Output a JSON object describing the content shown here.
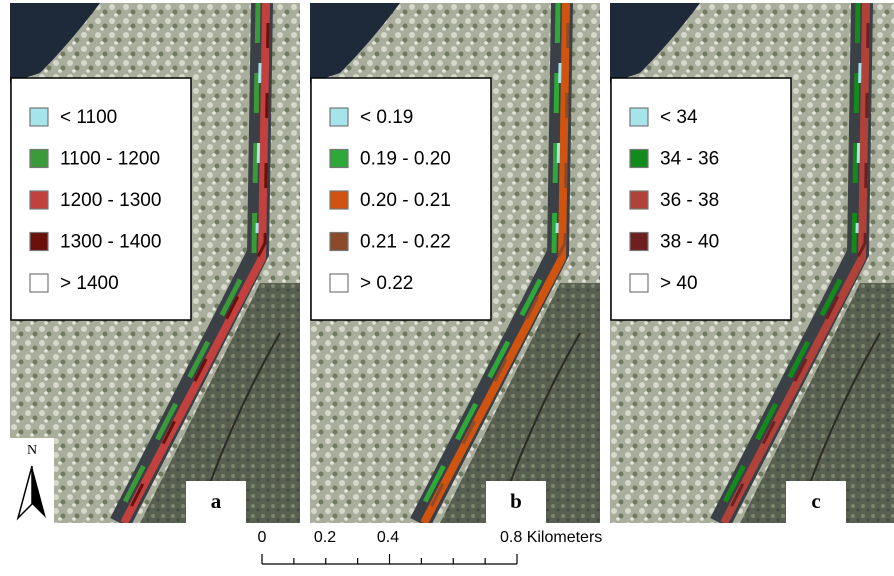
{
  "panels": [
    {
      "label": "a",
      "legend": [
        {
          "label": "< 1100",
          "color": "#a6e4ec"
        },
        {
          "label": "1100 - 1200",
          "color": "#3a9a3a"
        },
        {
          "label": "1200 - 1300",
          "color": "#c2413e"
        },
        {
          "label": "1300 - 1400",
          "color": "#6b0f0a"
        },
        {
          "label": "> 1400",
          "color": "#ffffff"
        }
      ]
    },
    {
      "label": "b",
      "legend": [
        {
          "label": "< 0.19",
          "color": "#a6e4ec"
        },
        {
          "label": "0.19 - 0.20",
          "color": "#2fa83a"
        },
        {
          "label": "0.20 - 0.21",
          "color": "#d0530f"
        },
        {
          "label": "0.21 - 0.22",
          "color": "#8b4a2a"
        },
        {
          "label": "> 0.22",
          "color": "#ffffff"
        }
      ]
    },
    {
      "label": "c",
      "legend": [
        {
          "label": "< 34",
          "color": "#a6e4ec"
        },
        {
          "label": "34 - 36",
          "color": "#138a1c"
        },
        {
          "label": "36 - 38",
          "color": "#b0423a"
        },
        {
          "label": "38 - 40",
          "color": "#6e2020"
        },
        {
          "label": "> 40",
          "color": "#ffffff"
        }
      ]
    }
  ],
  "north_arrow": {
    "label": "N"
  },
  "scale_bar": {
    "labels": [
      "0",
      "0.2",
      "0.4",
      "0.8 Kilometers"
    ]
  }
}
